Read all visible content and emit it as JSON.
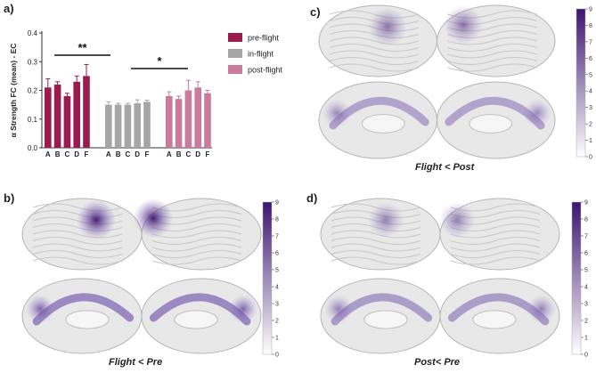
{
  "panels": {
    "a": {
      "label": "a)"
    },
    "b": {
      "label": "b)",
      "caption": "Flight < Pre"
    },
    "c": {
      "label": "c)",
      "caption": "Flight < Post"
    },
    "d": {
      "label": "d)",
      "caption": "Post< Pre"
    }
  },
  "colorbar": {
    "ticks": [
      "0",
      "1",
      "2",
      "3",
      "4",
      "5",
      "6",
      "7",
      "8",
      "9"
    ],
    "color_low": "#ffffff",
    "color_high": "#3d1470"
  },
  "chart_data": {
    "type": "bar",
    "ylabel": "α Strength FC (mean) - EC",
    "ylim": [
      0,
      0.4
    ],
    "yticks": [
      "0.0",
      "0.1",
      "0.2",
      "0.3",
      "0.4"
    ],
    "legend_position": "top-right",
    "groups": [
      {
        "name": "pre-flight",
        "color": "#9b1b4e",
        "categories": [
          "A",
          "B",
          "C",
          "D",
          "F"
        ],
        "values": [
          0.21,
          0.22,
          0.18,
          0.23,
          0.25
        ],
        "errors": [
          0.03,
          0.01,
          0.01,
          0.02,
          0.04
        ]
      },
      {
        "name": "in-flight",
        "color": "#a6a6a6",
        "categories": [
          "A",
          "B",
          "C",
          "D",
          "F"
        ],
        "values": [
          0.15,
          0.15,
          0.15,
          0.155,
          0.16
        ],
        "errors": [
          0.01,
          0.005,
          0.005,
          0.012,
          0.006
        ]
      },
      {
        "name": "post-flight",
        "color": "#cc7a9b",
        "categories": [
          "A",
          "B",
          "C",
          "D",
          "F"
        ],
        "values": [
          0.18,
          0.17,
          0.2,
          0.21,
          0.19
        ],
        "errors": [
          0.015,
          0.01,
          0.035,
          0.02,
          0.01
        ]
      }
    ],
    "significance": [
      {
        "label": "**",
        "from_group": 0,
        "to_group": 1
      },
      {
        "label": "*",
        "from_group": 1,
        "to_group": 2
      }
    ]
  }
}
